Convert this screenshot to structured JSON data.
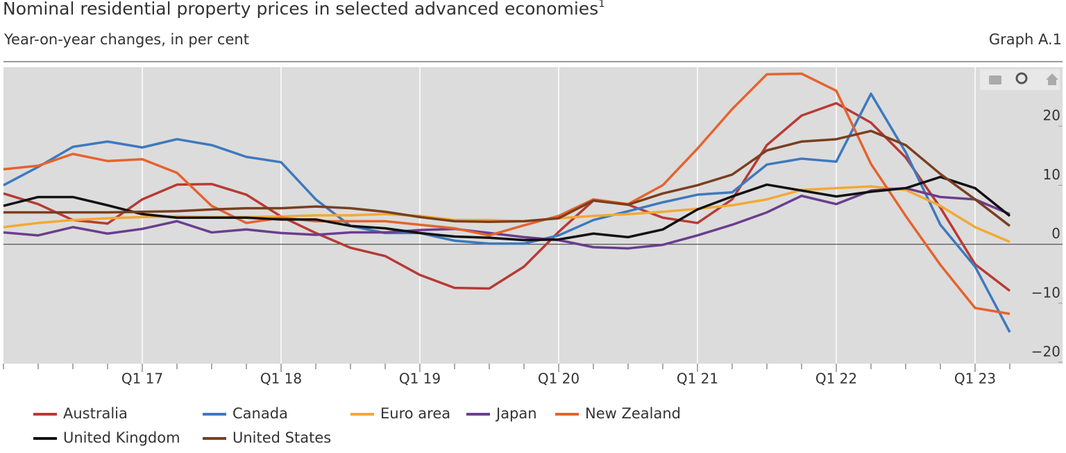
{
  "chart_data": {
    "type": "line",
    "title": "Nominal residential property prices in selected advanced economies",
    "title_footnote": "1",
    "subtitle": "Year-on-year changes, in per cent",
    "graph_label": "Graph A.1",
    "categories": [
      null,
      null,
      null,
      null,
      "Q1 17",
      null,
      null,
      null,
      "Q1 18",
      null,
      null,
      null,
      "Q1 19",
      null,
      null,
      null,
      "Q1 20",
      null,
      null,
      null,
      "Q1 21",
      null,
      null,
      null,
      "Q1 22",
      null,
      null,
      null,
      "Q1 23",
      null
    ],
    "ylim": [
      -20,
      30
    ],
    "yticks": [
      {
        "value": -20,
        "label": "−20"
      },
      {
        "value": -10,
        "label": "−10"
      },
      0,
      10,
      20
    ],
    "grid": true,
    "legend": "bottom",
    "series": [
      {
        "name": "Australia",
        "color": "#b83a35",
        "values": [
          8.6,
          6.8,
          4.1,
          3.5,
          7.6,
          10.1,
          10.2,
          8.4,
          4.7,
          1.9,
          -0.6,
          -2.0,
          -5.2,
          -7.4,
          -7.5,
          -3.8,
          2.1,
          7.4,
          6.7,
          4.5,
          3.6,
          7.6,
          16.8,
          21.8,
          23.9,
          20.6,
          14.7,
          6.2,
          -3.4,
          -7.9
        ]
      },
      {
        "name": "Canada",
        "color": "#3d79bf",
        "values": [
          10.0,
          13.1,
          16.5,
          17.4,
          16.4,
          17.8,
          16.8,
          14.8,
          13.9,
          7.6,
          3.1,
          1.9,
          1.9,
          0.6,
          0.1,
          0.1,
          1.5,
          4.1,
          5.6,
          7.1,
          8.4,
          8.8,
          13.5,
          14.5,
          14.0,
          25.5,
          15.6,
          3.3,
          -3.8,
          -14.9
        ]
      },
      {
        "name": "Euro area",
        "color": "#f2a934",
        "values": [
          2.9,
          3.6,
          4.1,
          4.4,
          4.6,
          4.7,
          4.6,
          4.6,
          4.7,
          4.9,
          4.9,
          5.1,
          4.8,
          4.1,
          4.1,
          3.9,
          4.4,
          4.8,
          5.1,
          5.5,
          6.0,
          6.6,
          7.6,
          9.2,
          9.5,
          9.8,
          9.2,
          6.5,
          2.9,
          0.4
        ]
      },
      {
        "name": "Japan",
        "color": "#6b3d8e",
        "values": [
          2.0,
          1.5,
          2.9,
          1.8,
          2.6,
          3.9,
          2.0,
          2.5,
          1.9,
          1.6,
          2.0,
          2.0,
          2.4,
          2.6,
          1.9,
          1.2,
          0.7,
          -0.5,
          -0.7,
          -0.1,
          1.5,
          3.3,
          5.4,
          8.2,
          6.8,
          9.1,
          9.5,
          8.0,
          7.6,
          5.1
        ]
      },
      {
        "name": "New Zealand",
        "color": "#e5632d",
        "values": [
          12.7,
          13.3,
          15.3,
          14.1,
          14.4,
          12.1,
          6.5,
          3.6,
          4.5,
          3.9,
          3.9,
          3.9,
          3.3,
          2.7,
          1.5,
          3.2,
          4.8,
          7.6,
          6.8,
          10.0,
          16.2,
          22.9,
          28.8,
          28.9,
          26.0,
          13.6,
          4.8,
          -3.5,
          -10.8,
          -11.8
        ]
      },
      {
        "name": "United Kingdom",
        "color": "#111111",
        "values": [
          6.5,
          8.0,
          8.0,
          6.6,
          5.1,
          4.5,
          4.5,
          4.5,
          4.2,
          4.2,
          3.1,
          2.7,
          1.9,
          1.3,
          1.1,
          0.7,
          0.8,
          1.8,
          1.2,
          2.5,
          5.9,
          8.1,
          10.1,
          9.1,
          8.1,
          8.9,
          9.5,
          11.4,
          9.5,
          4.8
        ]
      },
      {
        "name": "United States",
        "color": "#7a3f1f",
        "values": [
          5.4,
          5.4,
          5.4,
          5.4,
          5.5,
          5.6,
          5.9,
          6.1,
          6.1,
          6.4,
          6.1,
          5.5,
          4.6,
          3.9,
          3.8,
          3.9,
          4.4,
          7.4,
          6.7,
          8.6,
          10.0,
          11.8,
          15.9,
          17.4,
          17.8,
          19.2,
          16.8,
          11.9,
          7.6,
          3.1
        ]
      }
    ]
  }
}
